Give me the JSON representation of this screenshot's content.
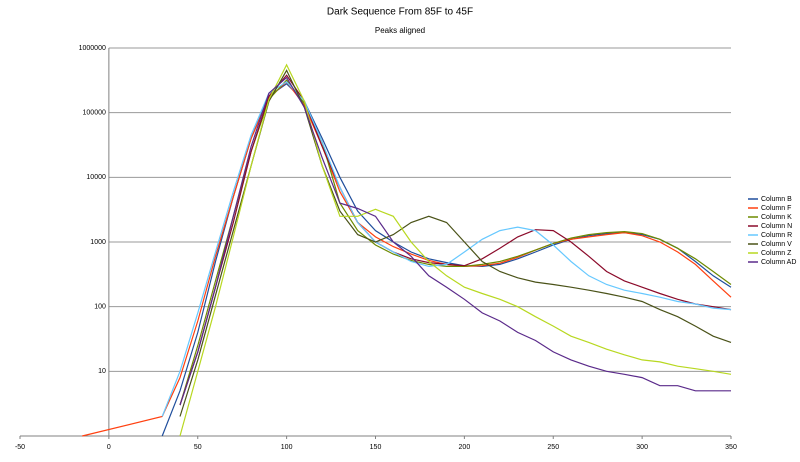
{
  "chart_data": {
    "type": "line",
    "title": "Dark Sequence From 85F to 45F",
    "subtitle": "Peaks aligned",
    "x": [
      -15,
      30,
      40,
      50,
      60,
      70,
      80,
      90,
      100,
      110,
      120,
      130,
      140,
      150,
      160,
      170,
      180,
      190,
      200,
      210,
      220,
      230,
      240,
      250,
      260,
      270,
      280,
      290,
      300,
      310,
      320,
      330,
      340,
      350
    ],
    "xlim": [
      -50,
      350
    ],
    "xticks": [
      -50,
      0,
      50,
      100,
      150,
      200,
      250,
      300,
      350
    ],
    "ylim": [
      1,
      1000000
    ],
    "yticks": [
      10,
      100,
      1000,
      10000,
      100000,
      1000000
    ],
    "log_y": true,
    "grid": true,
    "legend": "right",
    "series": [
      {
        "name": "Column B",
        "color": "#1f4e9c",
        "values": [
          null,
          1,
          5,
          40,
          500,
          5000,
          40000,
          180000,
          280000,
          150000,
          40000,
          10000,
          3000,
          1500,
          1000,
          700,
          550,
          480,
          430,
          420,
          450,
          550,
          700,
          900,
          1100,
          1250,
          1350,
          1400,
          1300,
          1100,
          800,
          500,
          300,
          200
        ]
      },
      {
        "name": "Column F",
        "color": "#ff4010",
        "values": [
          1,
          2,
          8,
          60,
          600,
          5000,
          40000,
          170000,
          300000,
          130000,
          30000,
          6000,
          2000,
          1200,
          850,
          650,
          520,
          450,
          420,
          430,
          470,
          580,
          750,
          950,
          1100,
          1200,
          1300,
          1400,
          1250,
          1000,
          700,
          450,
          250,
          140
        ]
      },
      {
        "name": "Column K",
        "color": "#6e8a00",
        "values": [
          null,
          null,
          3,
          25,
          250,
          2500,
          25000,
          160000,
          320000,
          140000,
          35000,
          4000,
          1500,
          900,
          650,
          520,
          450,
          420,
          420,
          450,
          500,
          600,
          750,
          950,
          1150,
          1300,
          1400,
          1450,
          1350,
          1100,
          800,
          550,
          350,
          220
        ]
      },
      {
        "name": "Column N",
        "color": "#8b0a2a",
        "values": [
          null,
          null,
          3,
          20,
          200,
          2000,
          25000,
          180000,
          380000,
          150000,
          30000,
          7000,
          2000,
          1000,
          700,
          550,
          480,
          450,
          430,
          550,
          800,
          1200,
          1550,
          1500,
          1000,
          600,
          350,
          250,
          200,
          160,
          130,
          110,
          100,
          90
        ]
      },
      {
        "name": "Column R",
        "color": "#66c8ff",
        "values": [
          null,
          2,
          10,
          80,
          700,
          6000,
          45000,
          200000,
          300000,
          150000,
          35000,
          7000,
          2000,
          1000,
          700,
          500,
          420,
          450,
          700,
          1100,
          1500,
          1700,
          1500,
          900,
          500,
          300,
          220,
          180,
          160,
          140,
          120,
          110,
          95,
          90
        ]
      },
      {
        "name": "Column V",
        "color": "#4a5218",
        "values": [
          null,
          null,
          2,
          15,
          150,
          1500,
          15000,
          150000,
          450000,
          120000,
          15000,
          3000,
          1300,
          1000,
          1300,
          2000,
          2500,
          2000,
          1000,
          500,
          350,
          280,
          240,
          220,
          200,
          180,
          160,
          140,
          120,
          90,
          70,
          50,
          35,
          28
        ]
      },
      {
        "name": "Column Z",
        "color": "#b8d820",
        "values": [
          null,
          null,
          1,
          10,
          100,
          1200,
          15000,
          160000,
          550000,
          150000,
          15000,
          2500,
          2500,
          3200,
          2500,
          1000,
          500,
          300,
          200,
          160,
          130,
          100,
          70,
          50,
          35,
          28,
          22,
          18,
          15,
          14,
          12,
          11,
          10,
          9
        ]
      },
      {
        "name": "Column AD",
        "color": "#5a2a8a",
        "values": [
          null,
          null,
          3,
          20,
          200,
          2500,
          30000,
          200000,
          350000,
          120000,
          20000,
          4000,
          3300,
          2500,
          1000,
          600,
          300,
          200,
          130,
          80,
          60,
          40,
          30,
          20,
          15,
          12,
          10,
          9,
          8,
          6,
          6,
          5,
          5,
          5
        ]
      }
    ]
  }
}
